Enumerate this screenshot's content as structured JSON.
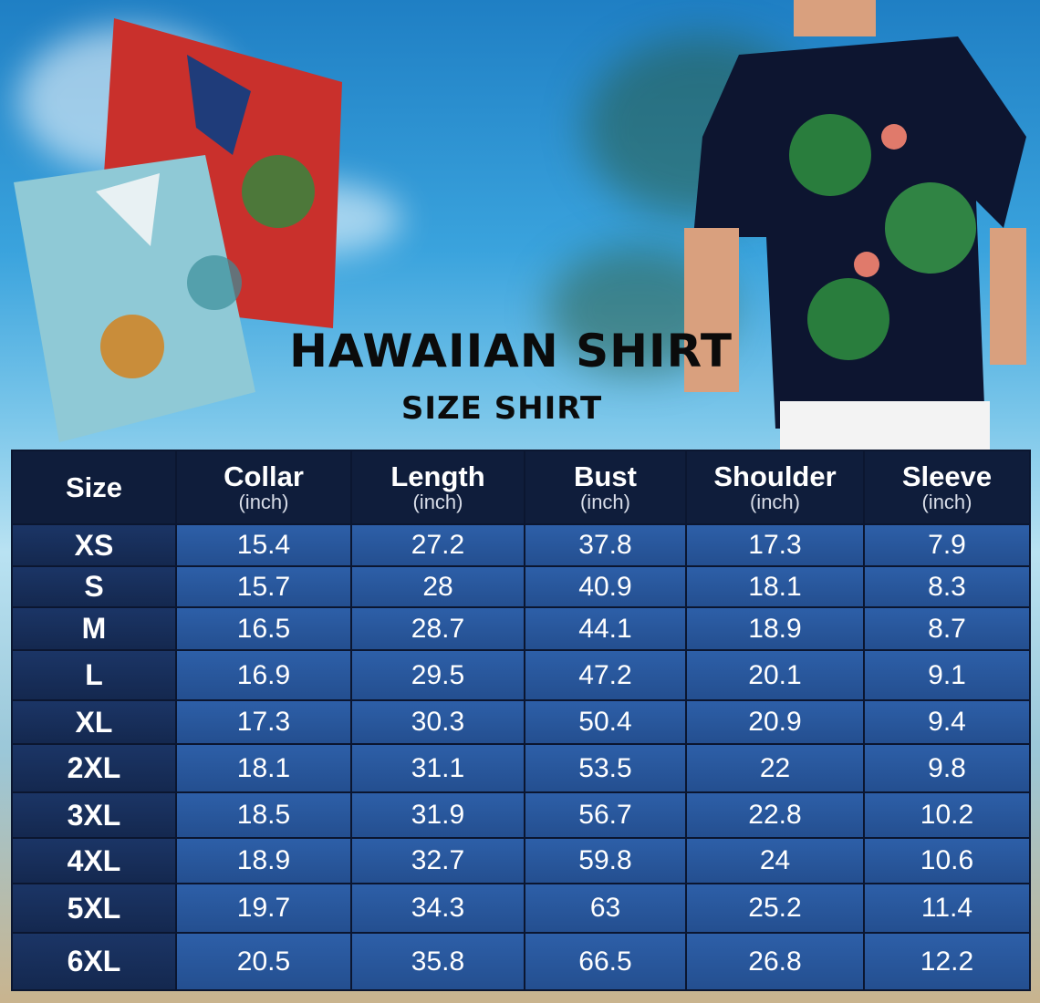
{
  "title": "HAWAIIAN SHIRT",
  "subtitle": "SIZE SHIRT",
  "colors": {
    "header": "#0f1d3b",
    "size_column": "#1b3566",
    "cells": "#2d5fa8"
  },
  "table": {
    "headers": [
      {
        "label": "Size",
        "unit": ""
      },
      {
        "label": "Collar",
        "unit": "(inch)"
      },
      {
        "label": "Length",
        "unit": "(inch)"
      },
      {
        "label": "Bust",
        "unit": "(inch)"
      },
      {
        "label": "Shoulder",
        "unit": "(inch)"
      },
      {
        "label": "Sleeve",
        "unit": "(inch)"
      }
    ],
    "rows": [
      [
        "XS",
        "15.4",
        "27.2",
        "37.8",
        "17.3",
        "7.9"
      ],
      [
        "S",
        "15.7",
        "28",
        "40.9",
        "18.1",
        "8.3"
      ],
      [
        "M",
        "16.5",
        "28.7",
        "44.1",
        "18.9",
        "8.7"
      ],
      [
        "L",
        "16.9",
        "29.5",
        "47.2",
        "20.1",
        "9.1"
      ],
      [
        "XL",
        "17.3",
        "30.3",
        "50.4",
        "20.9",
        "9.4"
      ],
      [
        "2XL",
        "18.1",
        "31.1",
        "53.5",
        "22",
        "9.8"
      ],
      [
        "3XL",
        "18.5",
        "31.9",
        "56.7",
        "22.8",
        "10.2"
      ],
      [
        "4XL",
        "18.9",
        "32.7",
        "59.8",
        "24",
        "10.6"
      ],
      [
        "5XL",
        "19.7",
        "34.3",
        "63",
        "25.2",
        "11.4"
      ],
      [
        "6XL",
        "20.5",
        "35.8",
        "66.5",
        "26.8",
        "12.2"
      ]
    ]
  }
}
